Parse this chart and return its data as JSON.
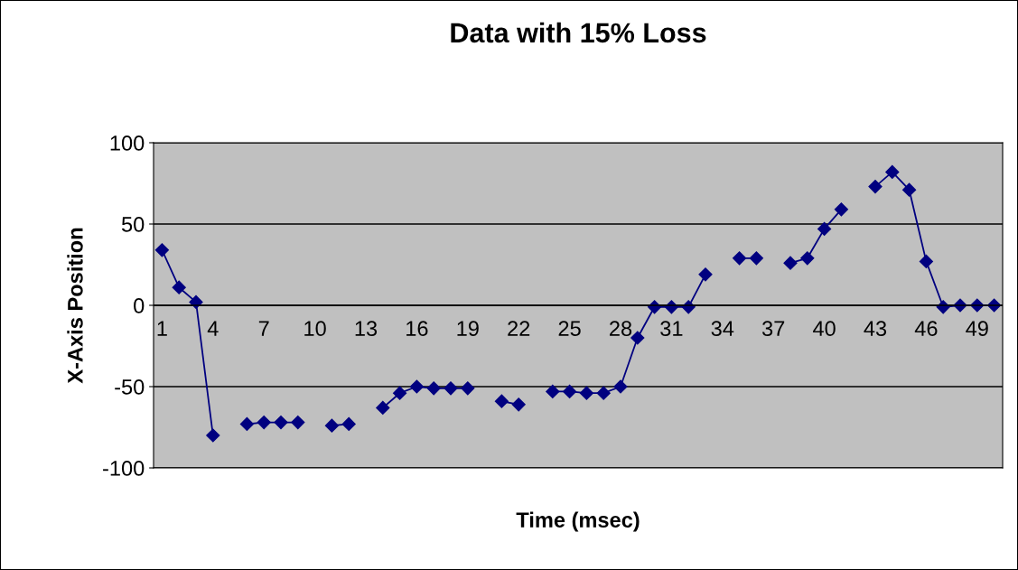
{
  "chart_data": {
    "type": "line",
    "title": "Data with 15% Loss",
    "xlabel": "Time (msec)",
    "ylabel": "X-Axis Position",
    "categories": [
      "1",
      null,
      null,
      "4",
      null,
      null,
      "7",
      null,
      null,
      "10",
      null,
      null,
      "13",
      null,
      null,
      "16",
      null,
      null,
      "19",
      null,
      null,
      "22",
      null,
      null,
      "25",
      null,
      null,
      "28",
      null,
      null,
      "31",
      null,
      null,
      "34",
      null,
      null,
      "37",
      null,
      null,
      "40",
      null,
      null,
      "43",
      null,
      null,
      "46",
      null,
      null,
      "49",
      null
    ],
    "series": [
      {
        "color": "#000080",
        "values": [
          34,
          11,
          2,
          -80,
          null,
          -73,
          -72,
          -72,
          -72,
          null,
          -74,
          -73,
          null,
          -63,
          -54,
          -50,
          -51,
          -51,
          -51,
          null,
          -59,
          -61,
          null,
          -53,
          -53,
          -54,
          -54,
          -50,
          -20,
          -1,
          -1,
          -1,
          19,
          null,
          29,
          29,
          null,
          26,
          29,
          47,
          59,
          null,
          73,
          82,
          71,
          27,
          -1,
          0,
          0,
          0
        ]
      }
    ],
    "ylim": [
      -100,
      100
    ],
    "yticks": [
      -100,
      -50,
      0,
      50,
      100
    ],
    "grid": "y",
    "marker": "diamond",
    "line_style": "solid"
  }
}
